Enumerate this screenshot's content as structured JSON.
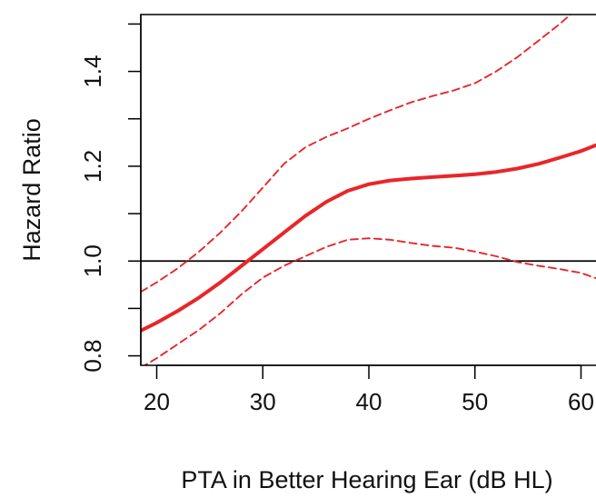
{
  "chart_data": {
    "type": "line",
    "title": "",
    "xlabel": "PTA in Better Hearing Ear (dB HL)",
    "ylabel": "Hazard Ratio",
    "xlim": [
      18.5,
      61.5
    ],
    "ylim": [
      0.78,
      1.52
    ],
    "x_ticks": [
      20,
      30,
      40,
      50,
      60
    ],
    "y_ticks": [
      0.8,
      1.0,
      1.2,
      1.4
    ],
    "x_tick_labels": [
      "20",
      "30",
      "40",
      "50",
      "60"
    ],
    "y_tick_labels": [
      "0.8",
      "1.0",
      "1.2",
      "1.4"
    ],
    "reference_line": {
      "y": 1.0,
      "color": "#000000"
    },
    "grid": false,
    "legend": "none",
    "series": [
      {
        "role": "estimate",
        "style": "solid",
        "color": "#e8262a",
        "x": [
          18.5,
          20,
          22,
          24,
          26,
          28,
          30,
          32,
          34,
          36,
          38,
          40,
          42,
          44,
          46,
          48,
          50,
          52,
          54,
          56,
          58,
          60,
          61.5
        ],
        "y": [
          0.853,
          0.87,
          0.895,
          0.923,
          0.955,
          0.99,
          1.025,
          1.06,
          1.095,
          1.125,
          1.148,
          1.162,
          1.17,
          1.174,
          1.177,
          1.18,
          1.183,
          1.188,
          1.195,
          1.205,
          1.218,
          1.232,
          1.245
        ]
      },
      {
        "role": "upper 95% CI",
        "style": "dashed",
        "color": "#e8262a",
        "x": [
          18.5,
          20,
          22,
          24,
          26,
          28,
          30,
          32,
          34,
          36,
          38,
          40,
          42,
          44,
          46,
          48,
          50,
          52,
          54,
          56,
          58,
          60,
          61.5
        ],
        "y": [
          0.935,
          0.955,
          0.985,
          1.02,
          1.06,
          1.105,
          1.155,
          1.205,
          1.24,
          1.262,
          1.28,
          1.3,
          1.318,
          1.335,
          1.348,
          1.36,
          1.375,
          1.4,
          1.43,
          1.465,
          1.5,
          1.54,
          1.57
        ]
      },
      {
        "role": "lower 95% CI",
        "style": "dashed",
        "color": "#e8262a",
        "x": [
          18.5,
          20,
          22,
          24,
          26,
          28,
          30,
          32,
          34,
          36,
          38,
          40,
          42,
          44,
          46,
          48,
          50,
          52,
          54,
          56,
          58,
          60,
          61.5
        ],
        "y": [
          0.775,
          0.795,
          0.825,
          0.855,
          0.89,
          0.93,
          0.965,
          0.99,
          1.01,
          1.03,
          1.045,
          1.048,
          1.045,
          1.038,
          1.032,
          1.028,
          1.02,
          1.01,
          0.998,
          0.99,
          0.983,
          0.975,
          0.963
        ]
      }
    ]
  }
}
